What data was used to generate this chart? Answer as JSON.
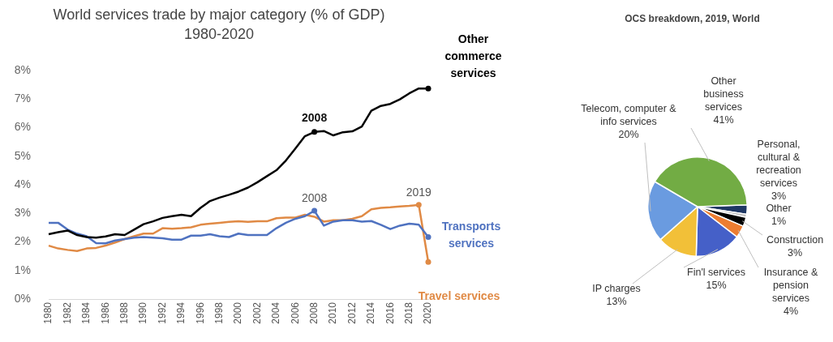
{
  "chart_data": [
    {
      "type": "line",
      "title": "World services trade by major category (% of GDP)",
      "subtitle": "1980-2020",
      "categories": [
        "1980",
        null,
        "1982",
        null,
        "1984",
        null,
        "1986",
        null,
        "1988",
        null,
        "1990",
        null,
        "1992",
        null,
        "1994",
        null,
        "1996",
        null,
        "1998",
        null,
        "2000",
        null,
        "2002",
        null,
        "2004",
        null,
        "2006",
        null,
        "2008",
        null,
        "2010",
        null,
        "2012",
        null,
        "2014",
        null,
        "2016",
        null,
        "2018",
        null,
        "2020"
      ],
      "series": [
        {
          "name": "Other commerce services",
          "color": "#000000",
          "values": [
            2.27,
            2.34,
            2.4,
            2.24,
            2.17,
            2.15,
            2.19,
            2.27,
            2.24,
            2.43,
            2.62,
            2.72,
            2.84,
            2.9,
            2.95,
            2.9,
            3.19,
            3.43,
            3.55,
            3.65,
            3.76,
            3.9,
            4.09,
            4.3,
            4.51,
            4.85,
            5.27,
            5.7,
            5.85,
            5.88,
            5.73,
            5.84,
            5.87,
            6.04,
            6.59,
            6.76,
            6.83,
            6.99,
            7.2,
            7.37,
            7.37
          ]
        },
        {
          "name": "Transports services",
          "color": "#4f72c0",
          "values": [
            2.67,
            2.67,
            2.43,
            2.29,
            2.2,
            1.96,
            1.95,
            2.05,
            2.1,
            2.15,
            2.17,
            2.15,
            2.13,
            2.08,
            2.08,
            2.22,
            2.22,
            2.27,
            2.2,
            2.17,
            2.29,
            2.24,
            2.24,
            2.24,
            2.48,
            2.67,
            2.81,
            2.9,
            3.09,
            2.57,
            2.71,
            2.76,
            2.76,
            2.71,
            2.73,
            2.6,
            2.45,
            2.57,
            2.64,
            2.6,
            2.17
          ]
        },
        {
          "name": "Travel services",
          "color": "#e08a45",
          "values": [
            1.87,
            1.77,
            1.72,
            1.68,
            1.77,
            1.79,
            1.87,
            1.98,
            2.1,
            2.2,
            2.29,
            2.29,
            2.48,
            2.46,
            2.48,
            2.51,
            2.6,
            2.64,
            2.67,
            2.7,
            2.72,
            2.7,
            2.72,
            2.72,
            2.83,
            2.85,
            2.85,
            2.95,
            2.88,
            2.71,
            2.76,
            2.76,
            2.81,
            2.9,
            3.14,
            3.19,
            3.21,
            3.24,
            3.26,
            3.3,
            1.3
          ]
        }
      ],
      "ylim": [
        0,
        8
      ],
      "yticks": [
        {
          "value": 0,
          "label": "0%"
        },
        {
          "value": 1,
          "label": "1%"
        },
        {
          "value": 2,
          "label": "2%"
        },
        {
          "value": 3,
          "label": "3%"
        },
        {
          "value": 4,
          "label": "4%"
        },
        {
          "value": 5,
          "label": "5%"
        },
        {
          "value": 6,
          "label": "6%"
        },
        {
          "value": 7,
          "label": "7%"
        },
        {
          "value": 8,
          "label": "8%"
        }
      ],
      "grid": false,
      "legend": false,
      "marker": "none",
      "line_style": "solid",
      "annotations": [
        {
          "text": "2008",
          "x": "2008",
          "y": 5.85
        },
        {
          "text": "2008",
          "x": "2008",
          "y": 3.09
        },
        {
          "text": "2019",
          "y": 3.3
        }
      ]
    },
    {
      "type": "pie",
      "title": "OCS breakdown, 2019, World",
      "categories": [
        "Personal, cultural & recreation services",
        "Other",
        "Construction",
        "Insurance & pension services",
        "Fin'l services",
        "IP charges",
        "Telecom, computer & info services",
        "Other business services"
      ],
      "values": [
        3,
        1,
        3,
        4,
        15,
        13,
        20,
        41
      ],
      "value_labels": [
        "3%",
        "1%",
        "3%",
        "4%",
        "15%",
        "13%",
        "20%",
        "41%"
      ],
      "colors": [
        "#1f3864",
        "#bfbfbf",
        "#000000",
        "#ed7d31",
        "#4560c8",
        "#f2c038",
        "#6a9be0",
        "#72ac44"
      ],
      "legend": false
    }
  ]
}
